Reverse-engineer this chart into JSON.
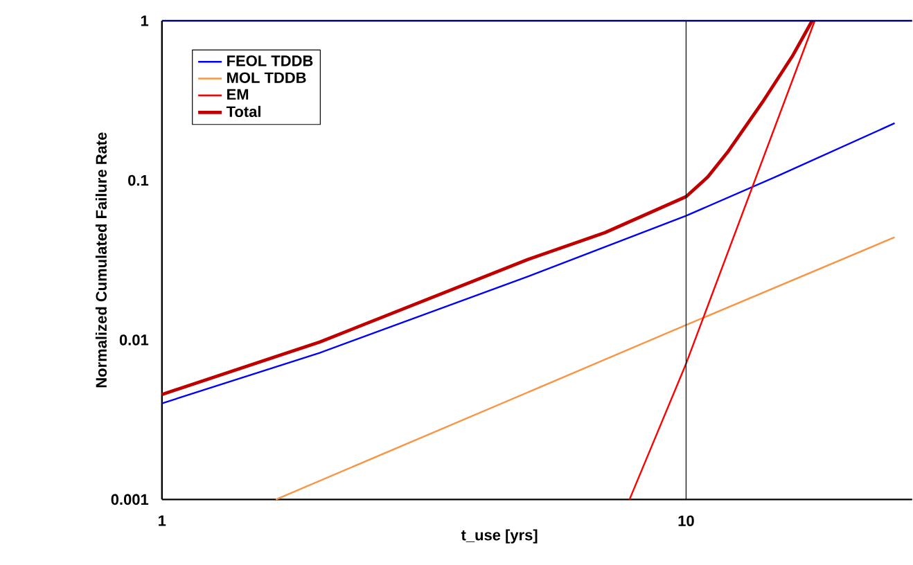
{
  "chart_data": {
    "type": "line",
    "xlabel": "t_use [yrs]",
    "ylabel": "Normalized Cumulated Failure Rate",
    "log": "xy",
    "xlim": [
      1,
      27
    ],
    "ylim": [
      0.001,
      1
    ],
    "xticks": [
      1,
      10
    ],
    "yticks": [
      0.001,
      0.01,
      0.1,
      1
    ],
    "legend": "top left",
    "ref_lines": [
      {
        "axis": "x",
        "value": 10,
        "color": "#000000"
      }
    ],
    "series": [
      {
        "name": "FEOL TDDB",
        "color": "#0000ff",
        "x": [
          1,
          2,
          5,
          10,
          15,
          25
        ],
        "values": [
          0.004,
          0.0083,
          0.025,
          0.06,
          0.107,
          0.228
        ]
      },
      {
        "name": "MOL TDDB",
        "color": "#f79646",
        "x": [
          1.65,
          10,
          25
        ],
        "values": [
          0.001,
          0.0124,
          0.044
        ]
      },
      {
        "name": "EM",
        "color": "#ff0000",
        "x": [
          7.8,
          10,
          17.6
        ],
        "values": [
          0.001,
          0.0071,
          1
        ]
      },
      {
        "name": "Total",
        "color": "#c00000",
        "x": [
          1,
          2,
          5,
          7,
          10,
          11,
          12,
          14,
          16,
          17.4
        ],
        "values": [
          0.00455,
          0.0097,
          0.032,
          0.047,
          0.079,
          0.105,
          0.15,
          0.31,
          0.61,
          1
        ]
      }
    ]
  }
}
